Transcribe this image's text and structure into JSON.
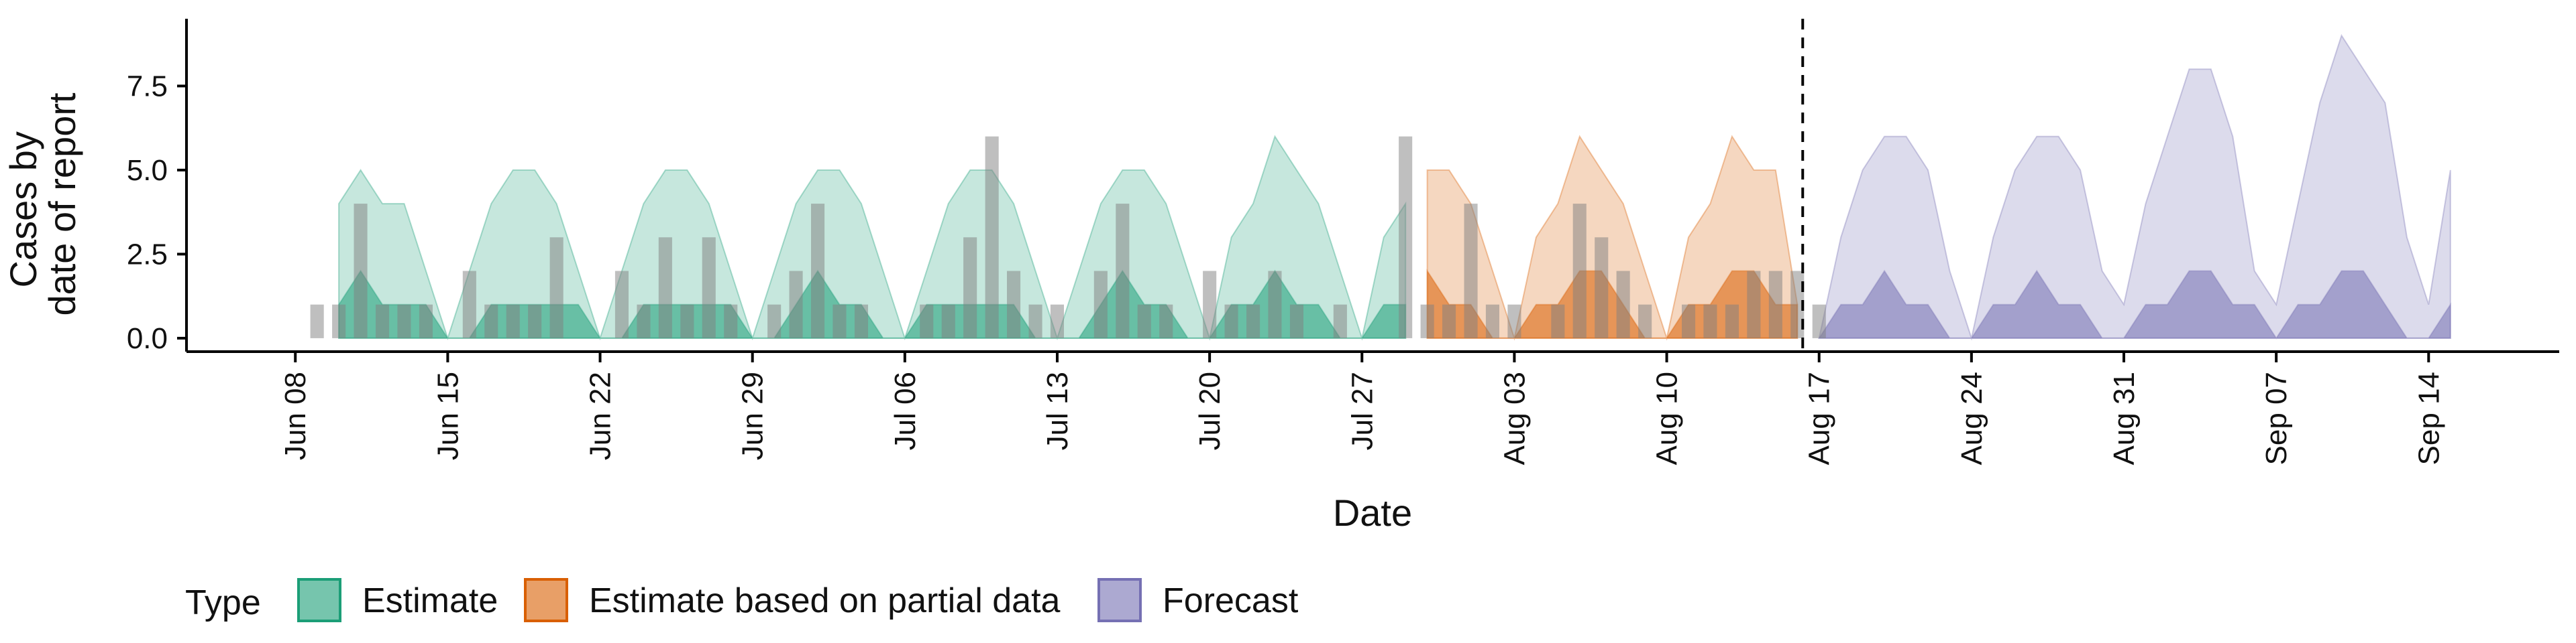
{
  "chart_data": {
    "type": "area",
    "xlabel": "Date",
    "ylabel_lines": [
      "Cases by",
      "date of report"
    ],
    "y_ticks": [
      0,
      2.5,
      5,
      7.5
    ],
    "y_tick_labels": [
      "0.0",
      "2.5",
      "5.0",
      "7.5"
    ],
    "ylim": [
      -0.4,
      9.5
    ],
    "xlim": [
      "2020-06-03",
      "2020-09-20"
    ],
    "x_ticks": [
      "2020-06-08",
      "2020-06-15",
      "2020-06-22",
      "2020-06-29",
      "2020-07-06",
      "2020-07-13",
      "2020-07-20",
      "2020-07-27",
      "2020-08-03",
      "2020-08-10",
      "2020-08-17",
      "2020-08-24",
      "2020-08-31",
      "2020-09-07",
      "2020-09-14"
    ],
    "x_tick_labels": [
      "Jun 08",
      "Jun 15",
      "Jun 22",
      "Jun 29",
      "Jul 06",
      "Jul 13",
      "Jul 20",
      "Jul 27",
      "Aug 03",
      "Aug 10",
      "Aug 17",
      "Aug 24",
      "Aug 31",
      "Sep 07",
      "Sep 14"
    ],
    "forecast_date": "2020-08-16",
    "grid": false,
    "legend_position": "bottom",
    "legend_title": "Type",
    "colors": {
      "Estimate": "#1B9E77",
      "Estimate based on partial data": "#D95F02",
      "Forecast": "#7570B3",
      "observed_bars": "#808080"
    },
    "series": [
      {
        "name": "Estimate",
        "dates": [
          "2020-06-10",
          "2020-06-11",
          "2020-06-12",
          "2020-06-13",
          "2020-06-14",
          "2020-06-15",
          "2020-06-16",
          "2020-06-17",
          "2020-06-18",
          "2020-06-19",
          "2020-06-20",
          "2020-06-21",
          "2020-06-22",
          "2020-06-23",
          "2020-06-24",
          "2020-06-25",
          "2020-06-26",
          "2020-06-27",
          "2020-06-28",
          "2020-06-29",
          "2020-06-30",
          "2020-07-01",
          "2020-07-02",
          "2020-07-03",
          "2020-07-04",
          "2020-07-05",
          "2020-07-06",
          "2020-07-07",
          "2020-07-08",
          "2020-07-09",
          "2020-07-10",
          "2020-07-11",
          "2020-07-12",
          "2020-07-13",
          "2020-07-14",
          "2020-07-15",
          "2020-07-16",
          "2020-07-17",
          "2020-07-18",
          "2020-07-19",
          "2020-07-20",
          "2020-07-21",
          "2020-07-22",
          "2020-07-23",
          "2020-07-24",
          "2020-07-25",
          "2020-07-26",
          "2020-07-27",
          "2020-07-28",
          "2020-07-29"
        ],
        "lower": [
          0,
          0,
          0,
          0,
          0,
          0,
          0,
          0,
          0,
          0,
          0,
          0,
          0,
          0,
          0,
          0,
          0,
          0,
          0,
          0,
          0,
          0,
          0,
          0,
          0,
          0,
          0,
          0,
          0,
          0,
          0,
          0,
          0,
          0,
          0,
          0,
          0,
          0,
          0,
          0,
          0,
          0,
          0,
          0,
          0,
          0,
          0,
          0,
          0,
          0
        ],
        "mid_lower": [
          0,
          1,
          1,
          0,
          0,
          0,
          0,
          1,
          1,
          1,
          1,
          0,
          0,
          0,
          1,
          1,
          1,
          1,
          0,
          0,
          0,
          0,
          1,
          1,
          0,
          0,
          0,
          0,
          1,
          1,
          1,
          1,
          0,
          0,
          0,
          0,
          1,
          1,
          0,
          0,
          0,
          0,
          1,
          1,
          1,
          0,
          0,
          0,
          0,
          0
        ],
        "mid_upper": [
          1,
          2,
          1,
          1,
          1,
          0,
          0,
          1,
          1,
          1,
          1,
          1,
          0,
          0,
          1,
          1,
          1,
          1,
          1,
          0,
          0,
          1,
          2,
          1,
          1,
          0,
          0,
          1,
          1,
          1,
          1,
          1,
          0,
          0,
          0,
          1,
          2,
          1,
          1,
          0,
          0,
          1,
          1,
          2,
          1,
          1,
          0,
          0,
          1,
          1
        ],
        "upper": [
          4,
          5,
          4,
          4,
          2,
          0,
          2,
          4,
          5,
          5,
          4,
          2,
          0,
          2,
          4,
          5,
          5,
          4,
          2,
          0,
          2,
          4,
          5,
          5,
          4,
          2,
          0,
          2,
          4,
          5,
          5,
          4,
          2,
          0,
          2,
          4,
          5,
          5,
          4,
          2,
          0,
          3,
          4,
          6,
          5,
          4,
          2,
          0,
          3,
          4
        ]
      },
      {
        "name": "Estimate based on partial data",
        "dates": [
          "2020-07-30",
          "2020-07-31",
          "2020-08-01",
          "2020-08-02",
          "2020-08-03",
          "2020-08-04",
          "2020-08-05",
          "2020-08-06",
          "2020-08-07",
          "2020-08-08",
          "2020-08-09",
          "2020-08-10",
          "2020-08-11",
          "2020-08-12",
          "2020-08-13",
          "2020-08-14",
          "2020-08-15",
          "2020-08-16"
        ],
        "lower": [
          0,
          0,
          0,
          0,
          0,
          0,
          0,
          0,
          0,
          0,
          0,
          0,
          0,
          0,
          0,
          0,
          0,
          0
        ],
        "mid_lower": [
          1,
          0,
          0,
          0,
          0,
          0,
          0,
          1,
          1,
          0,
          0,
          0,
          0,
          0,
          1,
          1,
          1,
          0
        ],
        "mid_upper": [
          2,
          1,
          1,
          0,
          0,
          1,
          1,
          2,
          2,
          1,
          0,
          0,
          1,
          1,
          2,
          2,
          1,
          1
        ],
        "upper": [
          5,
          5,
          4,
          2,
          0,
          3,
          4,
          6,
          5,
          4,
          2,
          0,
          3,
          4,
          6,
          5,
          5,
          1
        ]
      },
      {
        "name": "Forecast",
        "dates": [
          "2020-08-17",
          "2020-08-18",
          "2020-08-19",
          "2020-08-20",
          "2020-08-21",
          "2020-08-22",
          "2020-08-23",
          "2020-08-24",
          "2020-08-25",
          "2020-08-26",
          "2020-08-27",
          "2020-08-28",
          "2020-08-29",
          "2020-08-30",
          "2020-08-31",
          "2020-09-01",
          "2020-09-02",
          "2020-09-03",
          "2020-09-04",
          "2020-09-05",
          "2020-09-06",
          "2020-09-07",
          "2020-09-08",
          "2020-09-09",
          "2020-09-10",
          "2020-09-11",
          "2020-09-12",
          "2020-09-13",
          "2020-09-14",
          "2020-09-15"
        ],
        "lower": [
          0,
          0,
          0,
          0,
          0,
          0,
          0,
          0,
          0,
          0,
          0,
          0,
          0,
          0,
          0,
          0,
          0,
          0,
          0,
          0,
          0,
          0,
          0,
          0,
          0,
          0,
          0,
          0,
          0,
          0
        ],
        "mid_lower": [
          0,
          0,
          1,
          0,
          0,
          0,
          0,
          0,
          0,
          1,
          0,
          0,
          0,
          0,
          0,
          0,
          1,
          1,
          0,
          0,
          0,
          0,
          0,
          1,
          1,
          0,
          0,
          0,
          0,
          0
        ],
        "mid_upper": [
          0,
          1,
          1,
          2,
          1,
          1,
          0,
          0,
          1,
          1,
          2,
          1,
          1,
          0,
          0,
          1,
          1,
          2,
          2,
          1,
          1,
          0,
          1,
          1,
          2,
          2,
          1,
          0,
          0,
          1
        ],
        "upper": [
          0,
          3,
          5,
          6,
          6,
          5,
          2,
          0,
          3,
          5,
          6,
          6,
          5,
          2,
          1,
          4,
          6,
          8,
          8,
          6,
          2,
          1,
          4,
          7,
          9,
          8,
          7,
          3,
          1,
          5
        ]
      }
    ],
    "observed": {
      "dates": [
        "2020-06-09",
        "2020-06-10",
        "2020-06-11",
        "2020-06-12",
        "2020-06-13",
        "2020-06-14",
        "2020-06-16",
        "2020-06-17",
        "2020-06-18",
        "2020-06-19",
        "2020-06-20",
        "2020-06-23",
        "2020-06-24",
        "2020-06-25",
        "2020-06-26",
        "2020-06-27",
        "2020-06-28",
        "2020-06-30",
        "2020-07-01",
        "2020-07-02",
        "2020-07-03",
        "2020-07-04",
        "2020-07-07",
        "2020-07-08",
        "2020-07-09",
        "2020-07-10",
        "2020-07-11",
        "2020-07-12",
        "2020-07-13",
        "2020-07-15",
        "2020-07-16",
        "2020-07-17",
        "2020-07-18",
        "2020-07-20",
        "2020-07-21",
        "2020-07-22",
        "2020-07-23",
        "2020-07-24",
        "2020-07-26",
        "2020-07-29",
        "2020-07-30",
        "2020-07-31",
        "2020-08-01",
        "2020-08-02",
        "2020-08-03",
        "2020-08-05",
        "2020-08-06",
        "2020-08-07",
        "2020-08-08",
        "2020-08-09",
        "2020-08-11",
        "2020-08-12",
        "2020-08-13",
        "2020-08-14",
        "2020-08-15",
        "2020-08-16",
        "2020-08-17"
      ],
      "values": [
        1,
        1,
        4,
        1,
        1,
        1,
        2,
        1,
        1,
        1,
        3,
        2,
        1,
        3,
        1,
        3,
        1,
        1,
        2,
        4,
        1,
        1,
        1,
        1,
        3,
        6,
        2,
        1,
        1,
        2,
        4,
        1,
        1,
        2,
        1,
        1,
        2,
        1,
        1,
        6,
        1,
        1,
        4,
        1,
        1,
        1,
        4,
        3,
        2,
        1,
        1,
        1,
        1,
        2,
        2,
        2,
        1
      ]
    }
  },
  "legend": {
    "title": "Type",
    "items": [
      {
        "label": "Estimate",
        "color": "#1B9E77"
      },
      {
        "label": "Estimate based on partial data",
        "color": "#D95F02"
      },
      {
        "label": "Forecast",
        "color": "#7570B3"
      }
    ]
  }
}
